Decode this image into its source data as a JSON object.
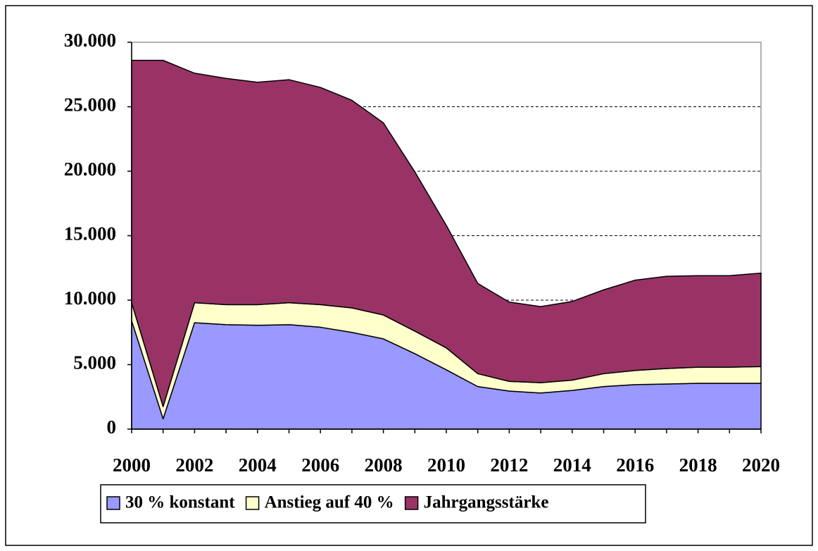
{
  "chart_data": {
    "type": "stacked-area",
    "x": [
      2000,
      2001,
      2002,
      2003,
      2004,
      2005,
      2006,
      2007,
      2008,
      2009,
      2010,
      2011,
      2012,
      2013,
      2014,
      2015,
      2016,
      2017,
      2018,
      2019,
      2020
    ],
    "series": [
      {
        "name": "30 % konstant",
        "color": "#9999ff",
        "values": [
          8400,
          800,
          8250,
          8100,
          8050,
          8100,
          7900,
          7500,
          7000,
          5850,
          4600,
          3300,
          2950,
          2800,
          3000,
          3300,
          3450,
          3500,
          3550,
          3550,
          3550
        ]
      },
      {
        "name": "Anstieg auf 40 %",
        "color": "#ffffcc",
        "values": [
          1400,
          950,
          1550,
          1550,
          1600,
          1700,
          1750,
          1900,
          1850,
          1750,
          1700,
          1000,
          750,
          800,
          800,
          1000,
          1100,
          1200,
          1250,
          1250,
          1300
        ]
      },
      {
        "name": "Jahrgangsstärke",
        "color": "#993366",
        "values": [
          18800,
          26850,
          17800,
          17550,
          17250,
          17300,
          16850,
          16100,
          14900,
          12350,
          9500,
          7000,
          6150,
          5900,
          6100,
          6500,
          7000,
          7150,
          7100,
          7100,
          7250
        ]
      }
    ],
    "xlim": [
      2000,
      2020
    ],
    "xticks": [
      2000,
      2002,
      2004,
      2006,
      2008,
      2010,
      2012,
      2014,
      2016,
      2018,
      2020
    ],
    "ylim": [
      0,
      30000
    ],
    "yticks": [
      0,
      {
        "value": 5000,
        "label": "5.000"
      },
      {
        "value": 10000,
        "label": "10.000"
      },
      {
        "value": 15000,
        "label": "15.000"
      },
      {
        "value": 20000,
        "label": "20.000"
      },
      {
        "value": 25000,
        "label": "25.000"
      },
      {
        "value": 30000,
        "label": "30.000"
      }
    ],
    "grid": true,
    "legend": "bottom"
  }
}
